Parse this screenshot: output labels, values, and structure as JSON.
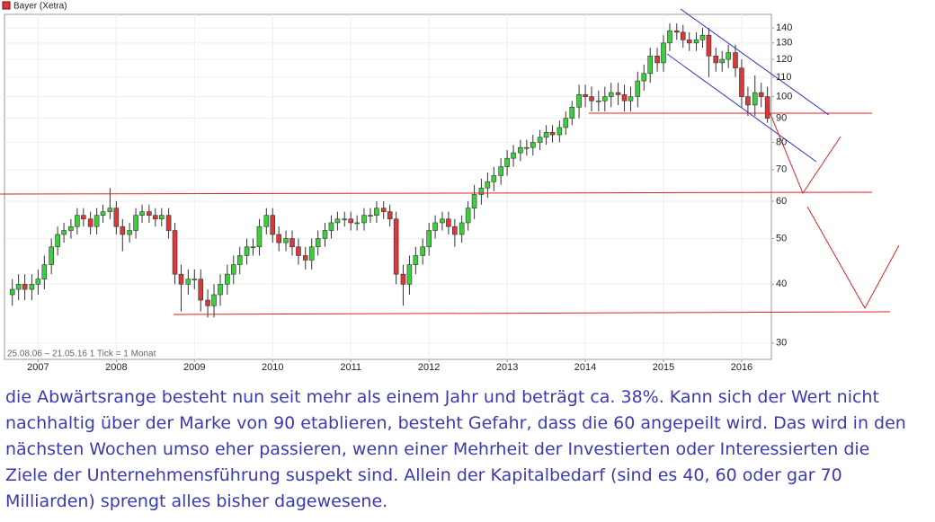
{
  "chart_data": {
    "type": "candlestick",
    "legend": "Bayer (Xetra)",
    "info": "25.08.06 – 21.05.16   1 Tick = 1 Monat",
    "log_scale": true,
    "grid": true,
    "up_color": "#3ccf3c",
    "down_color": "#d63a3a",
    "xlim": [
      2006.57,
      2016.38
    ],
    "xticks": [
      2007,
      2008,
      2009,
      2010,
      2011,
      2012,
      2013,
      2014,
      2015,
      2016
    ],
    "ylim": [
      27.7,
      149.5
    ],
    "yticks": [
      30,
      40,
      50,
      60,
      70,
      80,
      90,
      100,
      110,
      120,
      130,
      140
    ],
    "x": [
      2006.67,
      2006.75,
      2006.83,
      2006.92,
      2007,
      2007.08,
      2007.17,
      2007.25,
      2007.33,
      2007.42,
      2007.5,
      2007.58,
      2007.67,
      2007.75,
      2007.83,
      2007.92,
      2008,
      2008.08,
      2008.17,
      2008.25,
      2008.33,
      2008.42,
      2008.5,
      2008.58,
      2008.67,
      2008.75,
      2008.83,
      2008.92,
      2009,
      2009.08,
      2009.17,
      2009.25,
      2009.33,
      2009.42,
      2009.5,
      2009.58,
      2009.67,
      2009.75,
      2009.83,
      2009.92,
      2010,
      2010.08,
      2010.17,
      2010.25,
      2010.33,
      2010.42,
      2010.5,
      2010.58,
      2010.67,
      2010.75,
      2010.83,
      2010.92,
      2011,
      2011.08,
      2011.17,
      2011.25,
      2011.33,
      2011.42,
      2011.5,
      2011.58,
      2011.67,
      2011.75,
      2011.83,
      2011.92,
      2012,
      2012.08,
      2012.17,
      2012.25,
      2012.33,
      2012.42,
      2012.5,
      2012.58,
      2012.67,
      2012.75,
      2012.83,
      2012.92,
      2013,
      2013.08,
      2013.17,
      2013.25,
      2013.33,
      2013.42,
      2013.5,
      2013.58,
      2013.67,
      2013.75,
      2013.83,
      2013.92,
      2014,
      2014.08,
      2014.17,
      2014.25,
      2014.33,
      2014.42,
      2014.5,
      2014.58,
      2014.67,
      2014.75,
      2014.83,
      2014.92,
      2015,
      2015.08,
      2015.17,
      2015.25,
      2015.33,
      2015.42,
      2015.5,
      2015.58,
      2015.67,
      2015.75,
      2015.83,
      2015.92,
      2016,
      2016.08,
      2016.17,
      2016.25,
      2016.33
    ],
    "open": [
      38,
      39,
      40,
      39,
      40,
      41,
      44,
      48,
      51,
      52,
      53,
      56,
      55,
      53,
      56,
      57,
      58,
      53,
      51,
      52,
      56,
      57,
      56,
      55,
      56,
      52,
      42,
      40,
      41,
      41,
      37,
      36,
      38,
      40,
      42,
      44,
      46,
      48,
      48,
      53,
      56,
      51,
      49,
      50,
      48,
      46,
      45,
      48,
      50,
      52,
      54,
      55,
      55,
      54,
      54,
      56,
      56,
      58,
      57,
      55,
      42,
      40,
      44,
      46,
      48,
      52,
      54,
      55,
      53,
      51,
      54,
      58,
      62,
      64,
      66,
      68,
      71,
      74,
      76,
      78,
      78,
      80,
      82,
      84,
      83,
      86,
      90,
      95,
      101,
      100,
      98,
      98,
      100,
      102,
      101,
      98,
      100,
      108,
      112,
      122,
      118,
      130,
      138,
      137,
      132,
      130,
      132,
      135,
      122,
      118,
      120,
      124,
      115,
      100,
      96,
      102,
      100
    ],
    "high": [
      41,
      42,
      42,
      42,
      43,
      46,
      50,
      53,
      54,
      55,
      58,
      58,
      57,
      58,
      59,
      64,
      60,
      55,
      54,
      58,
      59,
      59,
      58,
      58,
      58,
      54,
      44,
      43,
      43,
      43,
      39,
      40,
      42,
      44,
      46,
      48,
      50,
      50,
      55,
      58,
      58,
      53,
      52,
      52,
      50,
      48,
      50,
      52,
      54,
      56,
      57,
      57,
      57,
      56,
      58,
      58,
      60,
      60,
      59,
      57,
      44,
      46,
      48,
      50,
      54,
      56,
      57,
      57,
      55,
      56,
      60,
      65,
      67,
      69,
      71,
      74,
      77,
      79,
      81,
      81,
      83,
      85,
      87,
      87,
      89,
      93,
      98,
      106,
      106,
      105,
      103,
      105,
      107,
      107,
      106,
      105,
      113,
      117,
      127,
      127,
      135,
      143,
      143,
      142,
      137,
      137,
      140,
      140,
      127,
      125,
      129,
      129,
      120,
      105,
      111,
      107,
      105
    ],
    "low": [
      36,
      37,
      37,
      37,
      38,
      39,
      42,
      46,
      49,
      50,
      51,
      53,
      51,
      51,
      54,
      55,
      51,
      47,
      49,
      50,
      54,
      54,
      53,
      53,
      50,
      40,
      35,
      38,
      39,
      35,
      34,
      34,
      36,
      38,
      40,
      42,
      44,
      46,
      46,
      51,
      49,
      47,
      47,
      46,
      44,
      43,
      43,
      46,
      48,
      50,
      52,
      53,
      52,
      52,
      52,
      54,
      54,
      55,
      53,
      40,
      36,
      38,
      42,
      44,
      46,
      50,
      52,
      51,
      48,
      49,
      52,
      55,
      59,
      61,
      63,
      65,
      68,
      71,
      73,
      75,
      75,
      77,
      79,
      80,
      80,
      83,
      87,
      90,
      95,
      93,
      93,
      93,
      95,
      96,
      93,
      93,
      95,
      103,
      107,
      113,
      113,
      125,
      132,
      127,
      125,
      125,
      127,
      110,
      113,
      113,
      115,
      110,
      95,
      91,
      91,
      95,
      88
    ],
    "close": [
      39,
      40,
      39,
      40,
      41,
      44,
      48,
      51,
      52,
      53,
      56,
      55,
      53,
      56,
      57,
      58,
      53,
      51,
      52,
      56,
      57,
      56,
      55,
      56,
      52,
      42,
      40,
      41,
      41,
      37,
      36,
      38,
      40,
      42,
      44,
      46,
      48,
      48,
      53,
      56,
      51,
      49,
      50,
      48,
      46,
      45,
      48,
      50,
      52,
      54,
      55,
      55,
      54,
      54,
      56,
      56,
      58,
      57,
      55,
      42,
      40,
      44,
      46,
      48,
      52,
      54,
      55,
      53,
      51,
      54,
      58,
      62,
      64,
      66,
      68,
      71,
      74,
      76,
      78,
      78,
      80,
      82,
      84,
      83,
      86,
      90,
      95,
      101,
      100,
      98,
      98,
      100,
      102,
      101,
      98,
      100,
      108,
      112,
      122,
      118,
      130,
      138,
      137,
      132,
      130,
      132,
      135,
      122,
      118,
      120,
      124,
      115,
      100,
      96,
      102,
      100,
      90
    ]
  },
  "caption_lines": [
    "die Abwärtsrange besteht nun seit mehr als einem Jahr und beträgt ca. 38%. Kann sich der Wert nicht",
    "nachhaltig über der Marke von 90 etablieren, besteht Gefahr, dass die 60 angepeilt wird. Das wird in den",
    "nächsten Wochen umso eher passieren, wenn einer Mehrheit der Investierten oder Interessierten die",
    "Ziele der Unternehmensführung suspekt sind. Allein der Kapitalbedarf (sind es 40, 60 oder gar 70",
    "Milliarden) sprengt alles bisher dagewesene."
  ]
}
